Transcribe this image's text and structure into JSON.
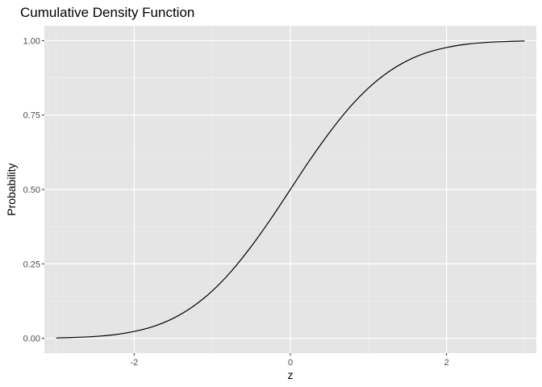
{
  "chart_data": {
    "type": "line",
    "title": "Cumulative Density Function",
    "xlabel": "z",
    "ylabel": "Probability",
    "xlim": [
      -3.15,
      3.15
    ],
    "ylim": [
      -0.05,
      1.05
    ],
    "x_ticks": [
      -2,
      0,
      2
    ],
    "x_tick_labels": [
      "-2",
      "0",
      "2"
    ],
    "y_ticks": [
      0,
      0.25,
      0.5,
      0.75,
      1
    ],
    "y_tick_labels": [
      "0.00",
      "0.25",
      "0.50",
      "0.75",
      "1.00"
    ],
    "grid": true,
    "series": [
      {
        "x": [
          -3.0,
          -2.75,
          -2.5,
          -2.25,
          -2.0,
          -1.75,
          -1.5,
          -1.25,
          -1.0,
          -0.75,
          -0.5,
          -0.25,
          0.0,
          0.25,
          0.5,
          0.75,
          1.0,
          1.25,
          1.5,
          1.75,
          2.0,
          2.25,
          2.5,
          2.75,
          3.0
        ],
        "y": [
          0.001,
          0.003,
          0.006,
          0.012,
          0.023,
          0.04,
          0.067,
          0.106,
          0.159,
          0.227,
          0.309,
          0.401,
          0.5,
          0.599,
          0.691,
          0.773,
          0.841,
          0.894,
          0.933,
          0.96,
          0.977,
          0.988,
          0.994,
          0.997,
          0.999
        ]
      }
    ],
    "colors": {
      "panel_background": "#e5e5e5",
      "grid_major": "#ffffff",
      "grid_minor": "#f2f2f2",
      "line": "#000000",
      "tick_label": "#4d4d4d"
    }
  }
}
